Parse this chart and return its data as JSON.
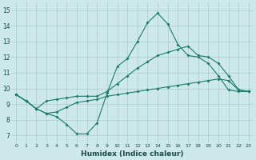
{
  "xlabel": "Humidex (Indice chaleur)",
  "bg_color": "#cce8e8",
  "line_color": "#1a7a6e",
  "grid_color": "#aacccc",
  "xlim": [
    -0.5,
    23.5
  ],
  "ylim": [
    6.5,
    15.5
  ],
  "xticks": [
    0,
    1,
    2,
    3,
    4,
    5,
    6,
    7,
    8,
    9,
    10,
    11,
    12,
    13,
    14,
    15,
    16,
    17,
    18,
    19,
    20,
    21,
    22,
    23
  ],
  "yticks": [
    7,
    8,
    9,
    10,
    11,
    12,
    13,
    14,
    15
  ],
  "series1_x": [
    0,
    1,
    2,
    3,
    4,
    5,
    6,
    7,
    8,
    9,
    10,
    11,
    12,
    13,
    14,
    15,
    16,
    17,
    18,
    19,
    20,
    21,
    22,
    23
  ],
  "series1_y": [
    9.6,
    9.2,
    8.7,
    8.4,
    8.2,
    7.7,
    7.1,
    7.1,
    7.8,
    9.7,
    11.4,
    11.9,
    13.0,
    14.2,
    14.8,
    14.1,
    12.8,
    12.1,
    12.0,
    11.6,
    10.8,
    9.9,
    9.8,
    9.8
  ],
  "series2_x": [
    0,
    1,
    2,
    3,
    4,
    5,
    6,
    7,
    8,
    9,
    10,
    11,
    12,
    13,
    14,
    15,
    16,
    17,
    18,
    19,
    20,
    21,
    22,
    23
  ],
  "series2_y": [
    9.6,
    9.2,
    8.7,
    8.4,
    8.5,
    8.8,
    9.1,
    9.2,
    9.3,
    9.5,
    9.6,
    9.7,
    9.8,
    9.9,
    10.0,
    10.1,
    10.2,
    10.3,
    10.4,
    10.5,
    10.6,
    10.5,
    9.9,
    9.8
  ],
  "series3_x": [
    0,
    1,
    2,
    3,
    4,
    5,
    6,
    7,
    8,
    9,
    10,
    11,
    12,
    13,
    14,
    15,
    16,
    17,
    18,
    19,
    20,
    21,
    22,
    23
  ],
  "series3_y": [
    9.6,
    9.2,
    8.7,
    9.2,
    9.3,
    9.4,
    9.5,
    9.5,
    9.5,
    9.8,
    10.3,
    10.8,
    11.3,
    11.7,
    12.1,
    12.3,
    12.5,
    12.7,
    12.1,
    12.0,
    11.6,
    10.8,
    9.9,
    9.8
  ]
}
